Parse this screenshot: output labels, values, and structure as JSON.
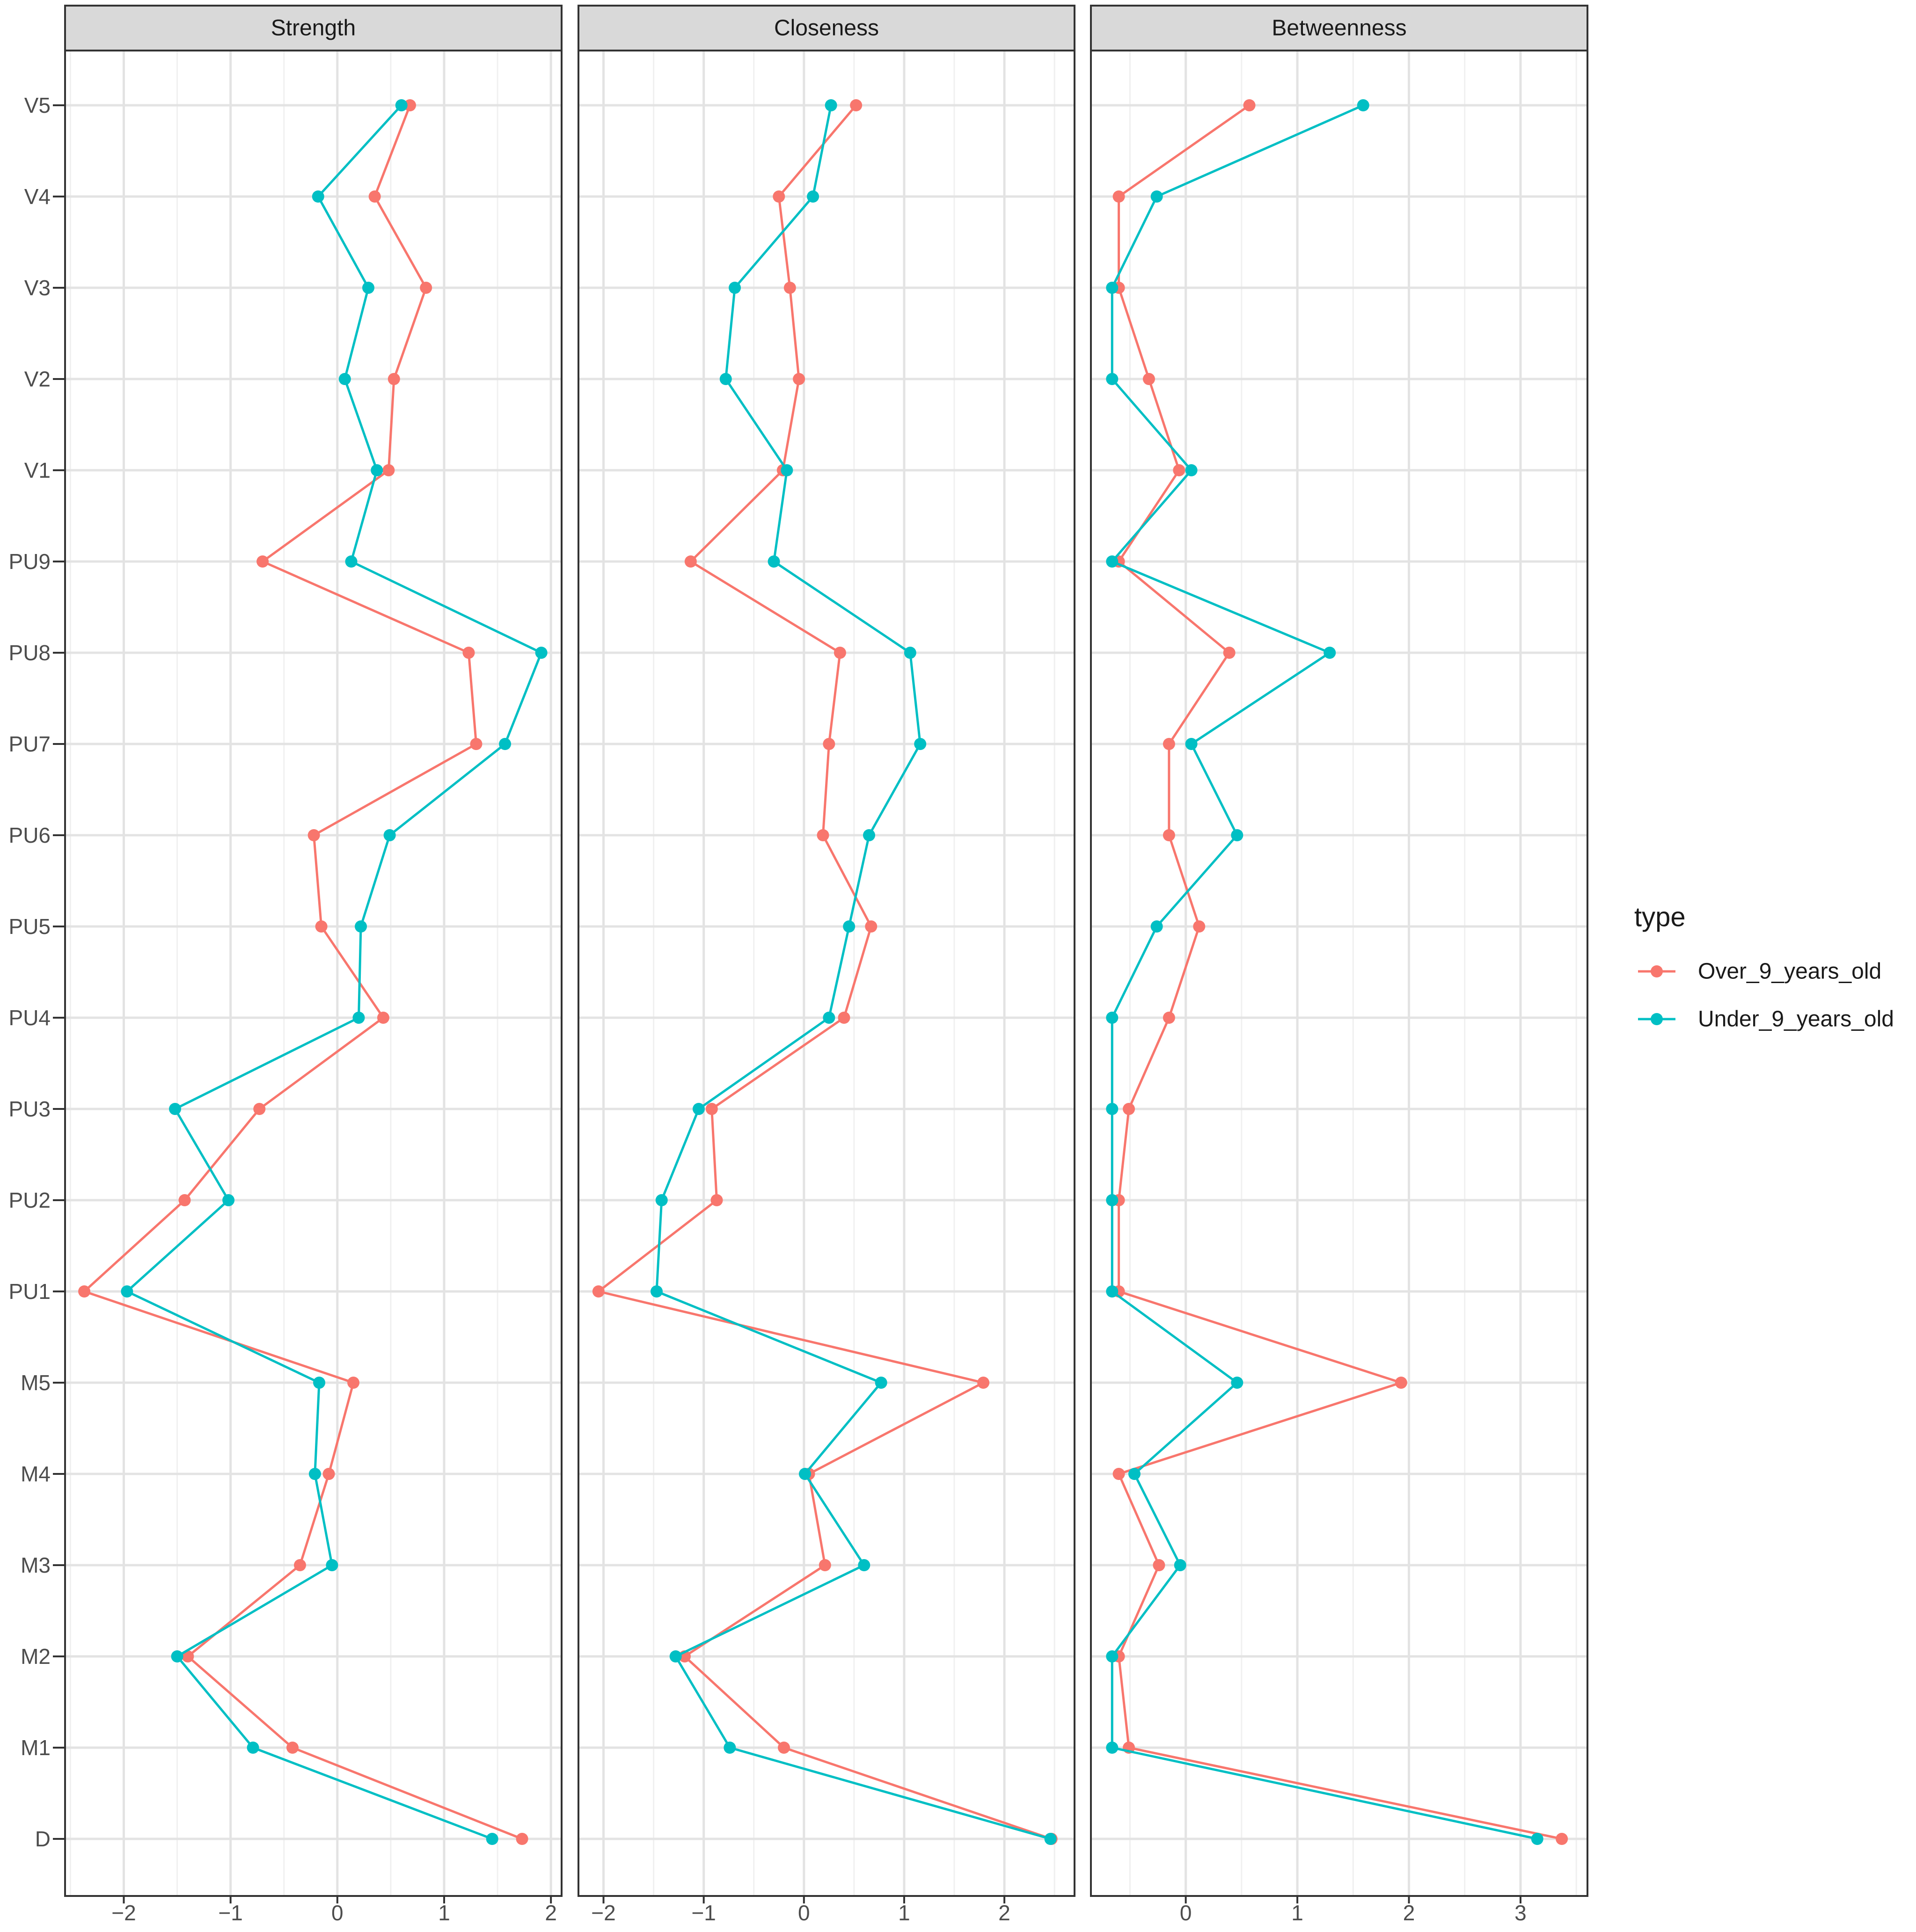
{
  "chart_data": {
    "type": "line",
    "nodes": [
      "V5",
      "V4",
      "V3",
      "V2",
      "V1",
      "PU9",
      "PU8",
      "PU7",
      "PU6",
      "PU5",
      "PU4",
      "PU3",
      "PU2",
      "PU1",
      "M5",
      "M4",
      "M3",
      "M2",
      "M1",
      "D"
    ],
    "legend": {
      "title": "type",
      "position": "right",
      "items": [
        {
          "label": "Over_9_years_old",
          "color": "#f8766d"
        },
        {
          "label": "Under_9_years_old",
          "color": "#00bfc4"
        }
      ]
    },
    "panels": [
      {
        "title": "Strength",
        "xlim": [
          -2.55,
          2.1
        ],
        "xticks": [
          -2,
          -1,
          0,
          1,
          2
        ],
        "xtick_labels": [
          "−2",
          "−1",
          "0",
          "1",
          "2"
        ],
        "series": [
          {
            "name": "Over_9_years_old",
            "color": "#f8766d",
            "values": [
              0.68,
              0.35,
              0.83,
              0.53,
              0.48,
              -0.7,
              1.23,
              1.3,
              -0.22,
              -0.15,
              0.43,
              -0.73,
              -1.43,
              -2.37,
              0.15,
              -0.08,
              -0.35,
              -1.4,
              -0.42,
              1.73
            ]
          },
          {
            "name": "Under_9_years_old",
            "color": "#00bfc4",
            "values": [
              0.6,
              -0.18,
              0.29,
              0.07,
              0.37,
              0.13,
              1.91,
              1.57,
              0.49,
              0.22,
              0.2,
              -1.52,
              -1.02,
              -1.97,
              -0.17,
              -0.21,
              -0.05,
              -1.5,
              -0.79,
              1.45
            ]
          }
        ]
      },
      {
        "title": "Closeness",
        "xlim": [
          -2.25,
          2.7
        ],
        "xticks": [
          -2,
          -1,
          0,
          1,
          2
        ],
        "xtick_labels": [
          "−2",
          "−1",
          "0",
          "1",
          "2"
        ],
        "series": [
          {
            "name": "Over_9_years_old",
            "color": "#f8766d",
            "values": [
              0.52,
              -0.25,
              -0.14,
              -0.05,
              -0.21,
              -1.13,
              0.36,
              0.25,
              0.19,
              0.67,
              0.4,
              -0.92,
              -0.87,
              -2.05,
              1.79,
              0.05,
              0.21,
              -1.19,
              -0.2,
              2.47
            ]
          },
          {
            "name": "Under_9_years_old",
            "color": "#00bfc4",
            "values": [
              0.27,
              0.09,
              -0.69,
              -0.78,
              -0.17,
              -0.3,
              1.06,
              1.16,
              0.65,
              0.45,
              0.25,
              -1.05,
              -1.42,
              -1.47,
              0.77,
              0.01,
              0.6,
              -1.28,
              -0.74,
              2.46
            ]
          }
        ]
      },
      {
        "title": "Betweenness",
        "xlim": [
          -0.85,
          3.6
        ],
        "xticks": [
          0,
          1,
          2,
          3
        ],
        "xtick_labels": [
          "0",
          "1",
          "2",
          "3"
        ],
        "series": [
          {
            "name": "Over_9_years_old",
            "color": "#f8766d",
            "values": [
              0.57,
              -0.6,
              -0.6,
              -0.33,
              -0.06,
              -0.6,
              0.39,
              -0.15,
              -0.15,
              0.12,
              -0.15,
              -0.51,
              -0.6,
              -0.6,
              1.93,
              -0.6,
              -0.24,
              -0.6,
              -0.51,
              3.37
            ]
          },
          {
            "name": "Under_9_years_old",
            "color": "#00bfc4",
            "values": [
              1.59,
              -0.26,
              -0.66,
              -0.66,
              0.05,
              -0.66,
              1.29,
              0.05,
              0.46,
              -0.26,
              -0.66,
              -0.66,
              -0.66,
              -0.66,
              0.46,
              -0.46,
              -0.05,
              -0.66,
              -0.66,
              3.15
            ]
          }
        ]
      }
    ]
  }
}
